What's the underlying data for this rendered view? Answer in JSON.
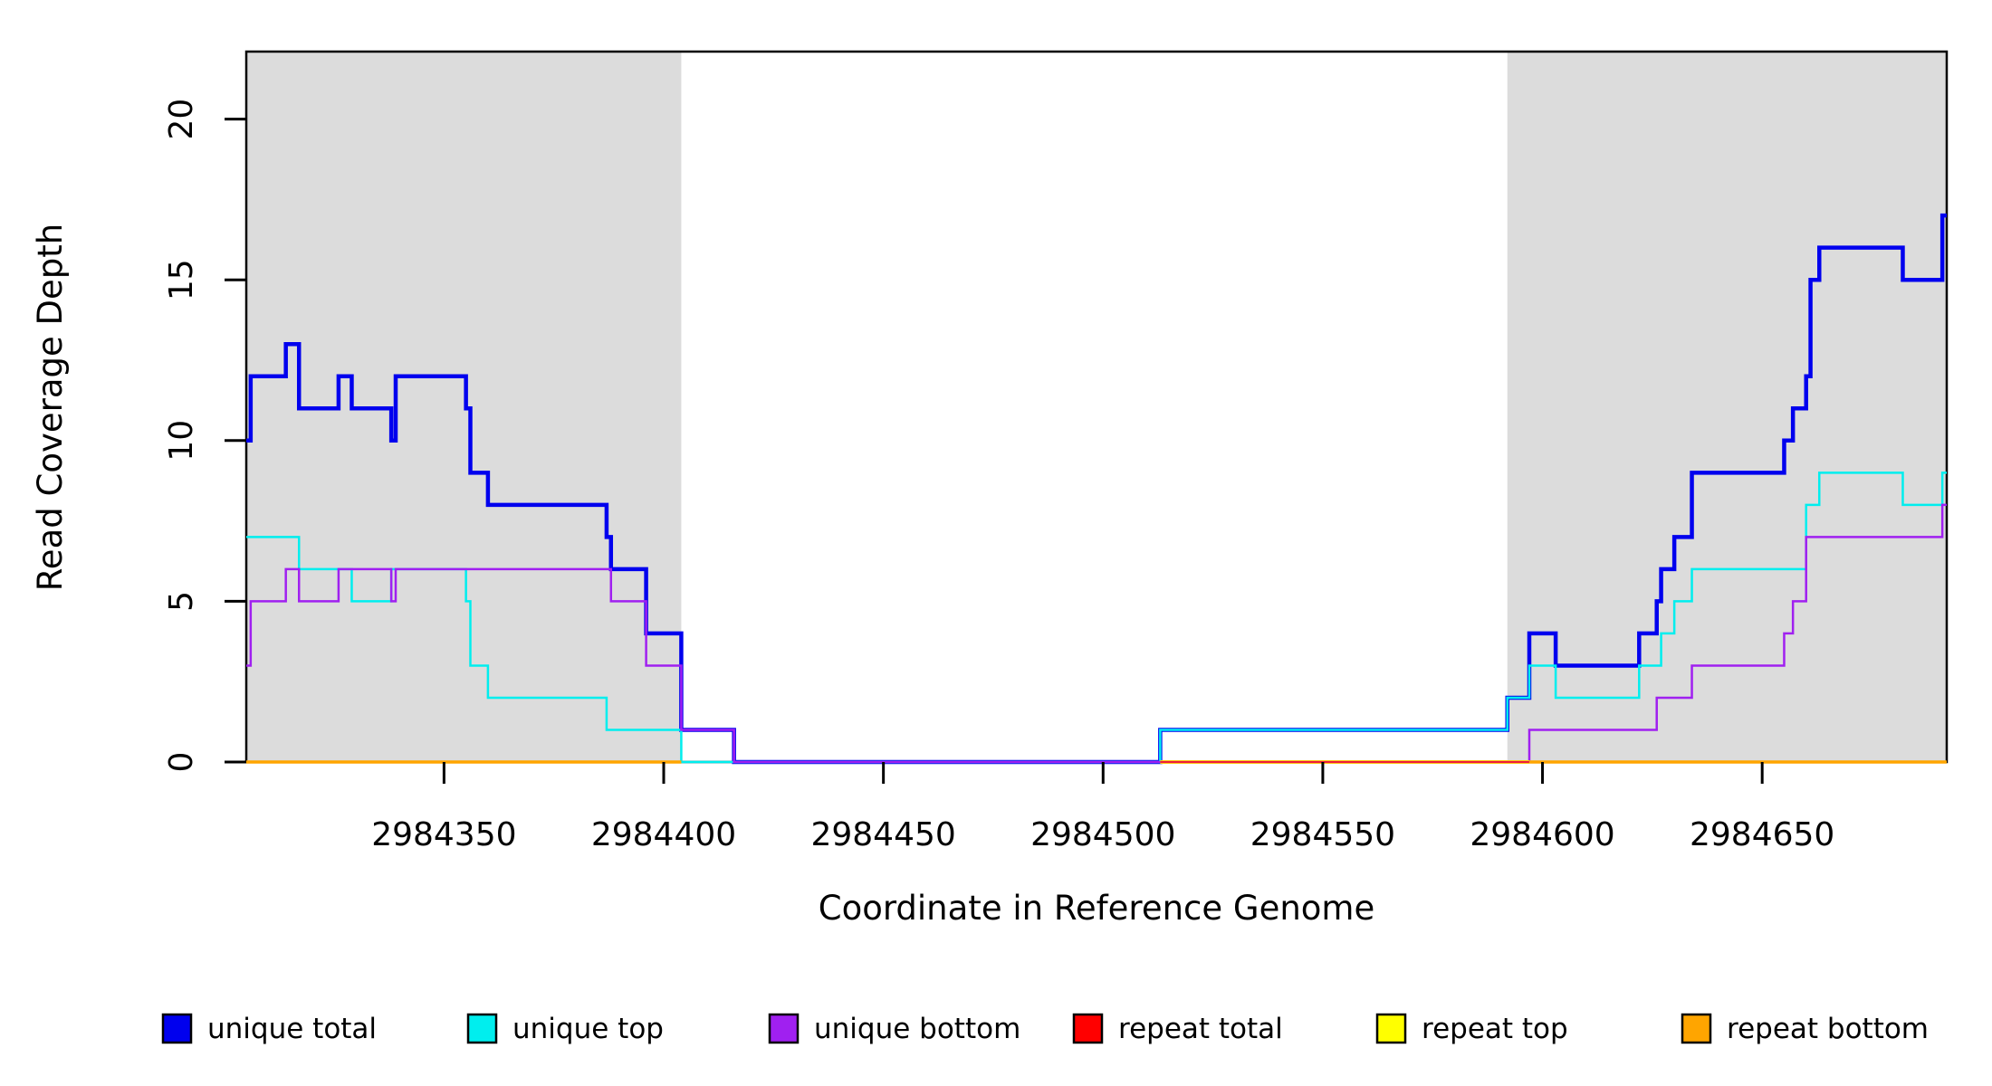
{
  "figure": {
    "background": "#ffffff",
    "box_color": "#000000",
    "text_color": "#000000"
  },
  "chart_data": {
    "type": "line",
    "subtype": "step",
    "title": "",
    "xlabel": "Coordinate in Reference Genome",
    "ylabel": "Read Coverage Depth",
    "xlim": [
      2984305,
      2984692
    ],
    "ylim": [
      0,
      22.1
    ],
    "x_ticks": [
      "2984350",
      "2984400",
      "2984450",
      "2984500",
      "2984550",
      "2984600",
      "2984650"
    ],
    "x_tick_values": [
      2984350,
      2984400,
      2984450,
      2984500,
      2984550,
      2984600,
      2984650
    ],
    "y_ticks": [
      "0",
      "5",
      "10",
      "15",
      "20"
    ],
    "y_tick_values": [
      0,
      5,
      10,
      15,
      20
    ],
    "grid": false,
    "legend_position": "bottom",
    "shade_color": "#DCDCDC",
    "shaded_regions": [
      {
        "from": 2984305,
        "to": 2984404
      },
      {
        "from": 2984592,
        "to": 2984692
      }
    ],
    "series": [
      {
        "name": "unique total",
        "color": "#0000EE",
        "line_width": 4.5,
        "segments": [
          {
            "steps": [
              [
                2984305,
                10
              ],
              [
                2984306,
                12
              ],
              [
                2984314,
                13
              ],
              [
                2984317,
                11
              ],
              [
                2984326,
                12
              ],
              [
                2984329,
                11
              ],
              [
                2984338,
                10
              ],
              [
                2984339,
                12
              ],
              [
                2984355,
                11
              ],
              [
                2984356,
                9
              ],
              [
                2984360,
                8
              ],
              [
                2984387,
                7
              ],
              [
                2984388,
                6
              ],
              [
                2984396,
                4
              ],
              [
                2984404,
                1
              ],
              [
                2984416,
                0
              ],
              [
                2984513,
                1
              ],
              [
                2984592,
                2
              ],
              [
                2984597,
                4
              ],
              [
                2984603,
                3
              ],
              [
                2984622,
                4
              ],
              [
                2984626,
                5
              ],
              [
                2984627,
                6
              ],
              [
                2984630,
                7
              ],
              [
                2984634,
                9
              ],
              [
                2984655,
                10
              ],
              [
                2984657,
                11
              ],
              [
                2984660,
                12
              ],
              [
                2984661,
                15
              ],
              [
                2984663,
                16
              ],
              [
                2984682,
                15
              ],
              [
                2984691,
                17
              ]
            ],
            "end": 2984692
          }
        ]
      },
      {
        "name": "unique top",
        "color": "#00EEEE",
        "line_width": 2.5,
        "segments": [
          {
            "steps": [
              [
                2984305,
                7
              ],
              [
                2984317,
                6
              ],
              [
                2984329,
                5
              ],
              [
                2984338,
                6
              ],
              [
                2984355,
                5
              ],
              [
                2984356,
                3
              ],
              [
                2984360,
                2
              ],
              [
                2984387,
                1
              ],
              [
                2984404,
                0
              ],
              [
                2984513,
                1
              ],
              [
                2984592,
                2
              ],
              [
                2984597,
                3
              ],
              [
                2984603,
                2
              ],
              [
                2984622,
                3
              ],
              [
                2984627,
                4
              ],
              [
                2984630,
                5
              ],
              [
                2984634,
                6
              ],
              [
                2984660,
                8
              ],
              [
                2984663,
                9
              ],
              [
                2984682,
                8
              ],
              [
                2984691,
                9
              ]
            ],
            "end": 2984692
          }
        ]
      },
      {
        "name": "unique bottom",
        "color": "#A020F0",
        "line_width": 2.5,
        "segments": [
          {
            "steps": [
              [
                2984305,
                3
              ],
              [
                2984306,
                5
              ],
              [
                2984314,
                6
              ],
              [
                2984317,
                5
              ],
              [
                2984326,
                6
              ],
              [
                2984338,
                5
              ],
              [
                2984339,
                6
              ],
              [
                2984388,
                5
              ],
              [
                2984396,
                3
              ],
              [
                2984404,
                1
              ],
              [
                2984416,
                0
              ],
              [
                2984597,
                1
              ],
              [
                2984626,
                2
              ],
              [
                2984634,
                3
              ],
              [
                2984655,
                4
              ],
              [
                2984657,
                5
              ],
              [
                2984660,
                7
              ],
              [
                2984691,
                8
              ]
            ],
            "end": 2984692
          }
        ]
      },
      {
        "name": "repeat total",
        "color": "#EE1C3C",
        "line_width": 2.4,
        "segments": [
          {
            "steps": [
              [
                2984513,
                0
              ]
            ],
            "end": 2984692
          }
        ]
      },
      {
        "name": "repeat top",
        "color": "#FFFF00",
        "line_width": 4,
        "segments": [
          {
            "steps": [
              [
                2984513,
                0
              ]
            ],
            "end": 2984597
          }
        ]
      },
      {
        "name": "repeat bottom",
        "color": "#FFA500",
        "line_width": 3.5,
        "segments": [
          {
            "steps": [
              [
                2984305,
                0
              ]
            ],
            "end": 2984404
          },
          {
            "steps": [
              [
                2984597,
                0
              ]
            ],
            "end": 2984692
          }
        ]
      }
    ],
    "legend": {
      "entries": [
        {
          "label": "unique total",
          "color": "#0000EE"
        },
        {
          "label": "unique top",
          "color": "#00EEEE"
        },
        {
          "label": "unique bottom",
          "color": "#A020F0"
        },
        {
          "label": "repeat total",
          "color": "#FF0000"
        },
        {
          "label": "repeat top",
          "color": "#FFFF00"
        },
        {
          "label": "repeat bottom",
          "color": "#FFA500"
        }
      ]
    }
  }
}
